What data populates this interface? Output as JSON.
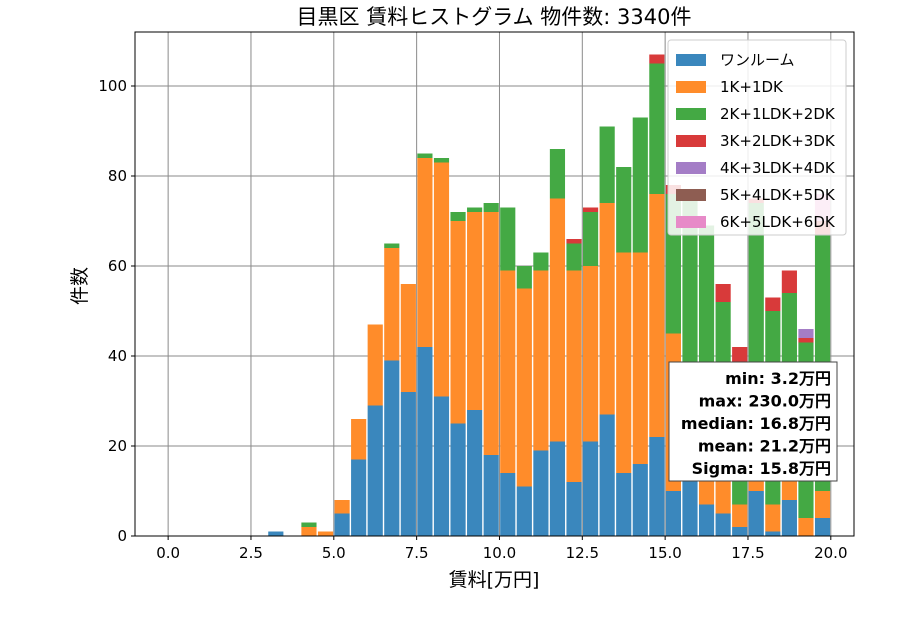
{
  "chart_data": {
    "type": "bar",
    "stacked": true,
    "title": "目黒区 賃料ヒストグラム 物件数: 3340件",
    "xlabel": "賃料[万円]",
    "ylabel": "件数",
    "xlim": [
      -1.0,
      20.7
    ],
    "ylim": [
      0,
      112
    ],
    "xticks": [
      "0.0",
      "2.5",
      "5.0",
      "7.5",
      "10.0",
      "12.5",
      "15.0",
      "17.5",
      "20.0"
    ],
    "xtick_values": [
      0,
      2.5,
      5,
      7.5,
      10,
      12.5,
      15,
      17.5,
      20
    ],
    "yticks": [
      "0",
      "20",
      "40",
      "60",
      "80",
      "100"
    ],
    "ytick_values": [
      0,
      20,
      40,
      60,
      80,
      100
    ],
    "grid": true,
    "legend_position": "top-right",
    "bin_width": 0.5,
    "bin_starts": [
      3.0,
      3.5,
      4.0,
      4.5,
      5.0,
      5.5,
      6.0,
      6.5,
      7.0,
      7.5,
      8.0,
      8.5,
      9.0,
      9.5,
      10.0,
      10.5,
      11.0,
      11.5,
      12.0,
      12.5,
      13.0,
      13.5,
      14.0,
      14.5,
      15.0,
      15.5,
      16.0,
      16.5,
      17.0,
      17.5,
      18.0,
      18.5,
      19.0,
      19.5
    ],
    "series": [
      {
        "name": "ワンルーム",
        "color": "#3a87bd",
        "values": [
          1,
          0,
          0,
          0,
          5,
          17,
          29,
          39,
          32,
          42,
          31,
          25,
          28,
          18,
          14,
          11,
          19,
          21,
          12,
          21,
          27,
          14,
          16,
          22,
          10,
          13,
          7,
          5,
          2,
          10,
          1,
          8,
          0,
          4
        ]
      },
      {
        "name": "1K+1DK",
        "color": "#ff8c2a",
        "values": [
          0,
          0,
          2,
          1,
          3,
          9,
          18,
          25,
          24,
          42,
          52,
          45,
          44,
          54,
          45,
          44,
          40,
          54,
          47,
          39,
          47,
          49,
          47,
          54,
          35,
          16,
          13,
          10,
          5,
          20,
          6,
          6,
          4,
          6
        ]
      },
      {
        "name": "2K+1LDK+2DK",
        "color": "#44a944",
        "values": [
          0,
          0,
          1,
          0,
          0,
          0,
          0,
          1,
          0,
          1,
          1,
          2,
          1,
          2,
          14,
          5,
          4,
          11,
          6,
          12,
          17,
          19,
          30,
          29,
          31,
          46,
          49,
          37,
          31,
          44,
          43,
          40,
          39,
          57
        ]
      },
      {
        "name": "3K+2LDK+3DK",
        "color": "#d83a3a",
        "values": [
          0,
          0,
          0,
          0,
          0,
          0,
          0,
          0,
          0,
          0,
          0,
          0,
          0,
          0,
          0,
          0,
          0,
          0,
          1,
          1,
          0,
          0,
          0,
          2,
          2,
          2,
          0,
          4,
          4,
          1,
          3,
          5,
          1,
          3
        ]
      },
      {
        "name": "4K+3LDK+4DK",
        "color": "#a47dc6",
        "values": [
          0,
          0,
          0,
          0,
          0,
          0,
          0,
          0,
          0,
          0,
          0,
          0,
          0,
          0,
          0,
          0,
          0,
          0,
          0,
          0,
          0,
          0,
          0,
          0,
          0,
          0,
          0,
          0,
          0,
          0,
          0,
          0,
          2,
          0
        ]
      },
      {
        "name": "5K+4LDK+5DK",
        "color": "#8e5d52",
        "values": [
          0,
          0,
          0,
          0,
          0,
          0,
          0,
          0,
          0,
          0,
          0,
          0,
          0,
          0,
          0,
          0,
          0,
          0,
          0,
          0,
          0,
          0,
          0,
          0,
          0,
          0,
          0,
          0,
          0,
          0,
          0,
          0,
          0,
          0
        ]
      },
      {
        "name": "6K+5LDK+6DK",
        "color": "#e78ac8",
        "values": [
          0,
          0,
          0,
          0,
          0,
          0,
          0,
          0,
          0,
          0,
          0,
          0,
          0,
          0,
          0,
          0,
          0,
          0,
          0,
          0,
          0,
          0,
          0,
          0,
          0,
          0,
          0,
          0,
          0,
          0,
          0,
          0,
          0,
          6
        ]
      }
    ],
    "stats_box": {
      "lines": [
        "min: 3.2万円",
        "max: 230.0万円",
        "median: 16.8万円",
        "mean: 21.2万円",
        "Sigma: 15.8万円"
      ]
    }
  }
}
